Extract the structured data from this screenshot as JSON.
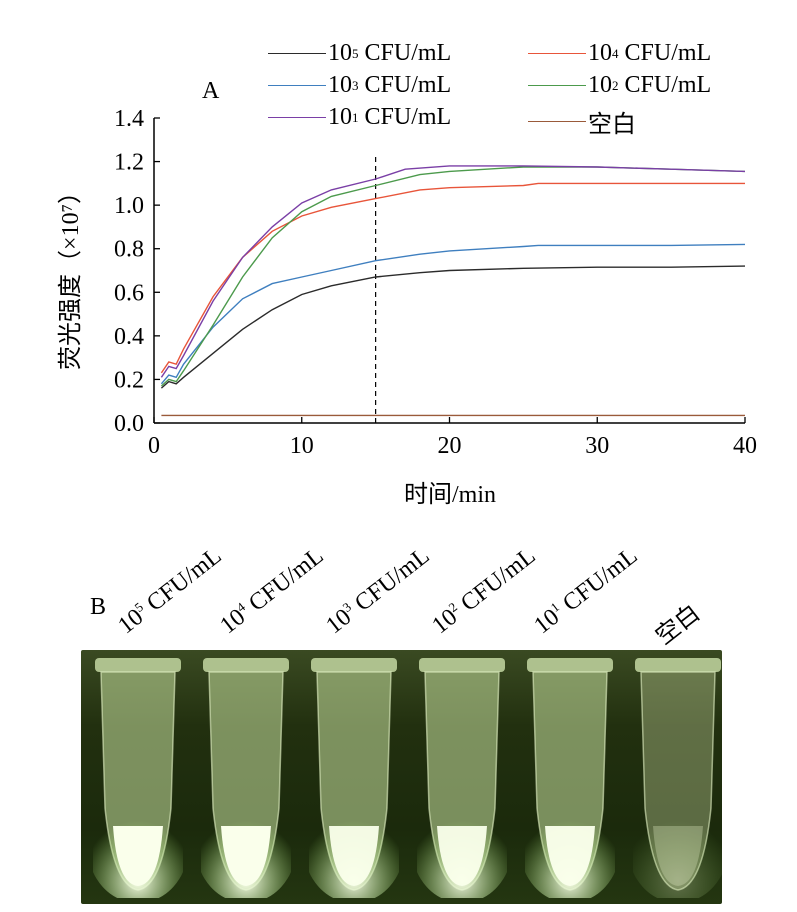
{
  "panels": {
    "a_label": "A",
    "b_label": "B"
  },
  "legend": [
    {
      "base": "10",
      "exp": "5",
      "unit": " CFU/mL",
      "color": "#2b2b2b"
    },
    {
      "base": "10",
      "exp": "4",
      "unit": " CFU/mL",
      "color": "#e8553a"
    },
    {
      "base": "10",
      "exp": "3",
      "unit": " CFU/mL",
      "color": "#3f7fbf"
    },
    {
      "base": "10",
      "exp": "2",
      "unit": " CFU/mL",
      "color": "#4c9a4c"
    },
    {
      "base": "10",
      "exp": "1",
      "unit": " CFU/mL",
      "color": "#7a3fa6"
    },
    {
      "base": "空白",
      "exp": "",
      "unit": "",
      "color": "#9a5a3a"
    }
  ],
  "chart_data": {
    "type": "line",
    "xlabel": "时间/min",
    "ylabel": "荧光强度（×10⁷）",
    "xlim": [
      0,
      40
    ],
    "ylim": [
      0,
      1.4
    ],
    "xticks": [
      "0",
      "10",
      "20",
      "30",
      "40"
    ],
    "yticks": [
      "0.0",
      "0.2",
      "0.4",
      "0.6",
      "0.8",
      "1.0",
      "1.2",
      "1.4"
    ],
    "reference_line_x": 15,
    "grid": false,
    "series": [
      {
        "name": "10⁵ CFU/mL",
        "color": "#2b2b2b",
        "x": [
          0.5,
          1,
          1.5,
          2,
          4,
          6,
          8,
          10,
          12,
          15,
          18,
          20,
          25,
          30,
          35,
          40
        ],
        "y": [
          0.16,
          0.19,
          0.18,
          0.21,
          0.32,
          0.43,
          0.52,
          0.59,
          0.63,
          0.67,
          0.69,
          0.7,
          0.71,
          0.715,
          0.715,
          0.72
        ]
      },
      {
        "name": "10⁴ CFU/mL",
        "color": "#e8553a",
        "x": [
          0.5,
          1,
          1.5,
          2,
          4,
          6,
          8,
          10,
          12,
          15,
          18,
          20,
          25,
          26,
          30,
          35,
          40
        ],
        "y": [
          0.23,
          0.28,
          0.27,
          0.34,
          0.58,
          0.76,
          0.88,
          0.95,
          0.99,
          1.03,
          1.07,
          1.08,
          1.09,
          1.1,
          1.1,
          1.1,
          1.1
        ]
      },
      {
        "name": "10³ CFU/mL",
        "color": "#3f7fbf",
        "x": [
          0.5,
          1,
          1.5,
          2,
          4,
          6,
          8,
          10,
          12,
          15,
          18,
          20,
          25,
          26,
          30,
          35,
          40
        ],
        "y": [
          0.18,
          0.22,
          0.21,
          0.27,
          0.44,
          0.57,
          0.64,
          0.67,
          0.7,
          0.745,
          0.775,
          0.79,
          0.81,
          0.815,
          0.815,
          0.815,
          0.82
        ]
      },
      {
        "name": "10² CFU/mL",
        "color": "#4c9a4c",
        "x": [
          0.5,
          1,
          1.5,
          2,
          4,
          6,
          8,
          10,
          12,
          15,
          18,
          20,
          25,
          30,
          35,
          40
        ],
        "y": [
          0.17,
          0.2,
          0.19,
          0.24,
          0.45,
          0.67,
          0.85,
          0.97,
          1.04,
          1.09,
          1.14,
          1.155,
          1.175,
          1.175,
          1.165,
          1.155
        ]
      },
      {
        "name": "10¹ CFU/mL",
        "color": "#7a3fa6",
        "x": [
          0.5,
          1,
          1.5,
          2,
          4,
          6,
          8,
          10,
          12,
          15,
          17,
          20,
          22,
          25,
          30,
          35,
          40
        ],
        "y": [
          0.21,
          0.26,
          0.25,
          0.31,
          0.56,
          0.76,
          0.9,
          1.01,
          1.07,
          1.12,
          1.165,
          1.18,
          1.18,
          1.18,
          1.175,
          1.165,
          1.155
        ]
      },
      {
        "name": "空白",
        "color": "#9a5a3a",
        "x": [
          0.5,
          40
        ],
        "y": [
          0.035,
          0.035
        ]
      }
    ]
  },
  "tubes": [
    {
      "base": "10",
      "exp": "5",
      "unit": " CFU/mL",
      "glow": 1.0
    },
    {
      "base": "10",
      "exp": "4",
      "unit": " CFU/mL",
      "glow": 1.0
    },
    {
      "base": "10",
      "exp": "3",
      "unit": " CFU/mL",
      "glow": 0.85
    },
    {
      "base": "10",
      "exp": "2",
      "unit": " CFU/mL",
      "glow": 0.85
    },
    {
      "base": "10",
      "exp": "1",
      "unit": " CFU/mL",
      "glow": 0.9
    },
    {
      "base": "空白",
      "exp": "",
      "unit": "",
      "glow": 0.15
    }
  ]
}
